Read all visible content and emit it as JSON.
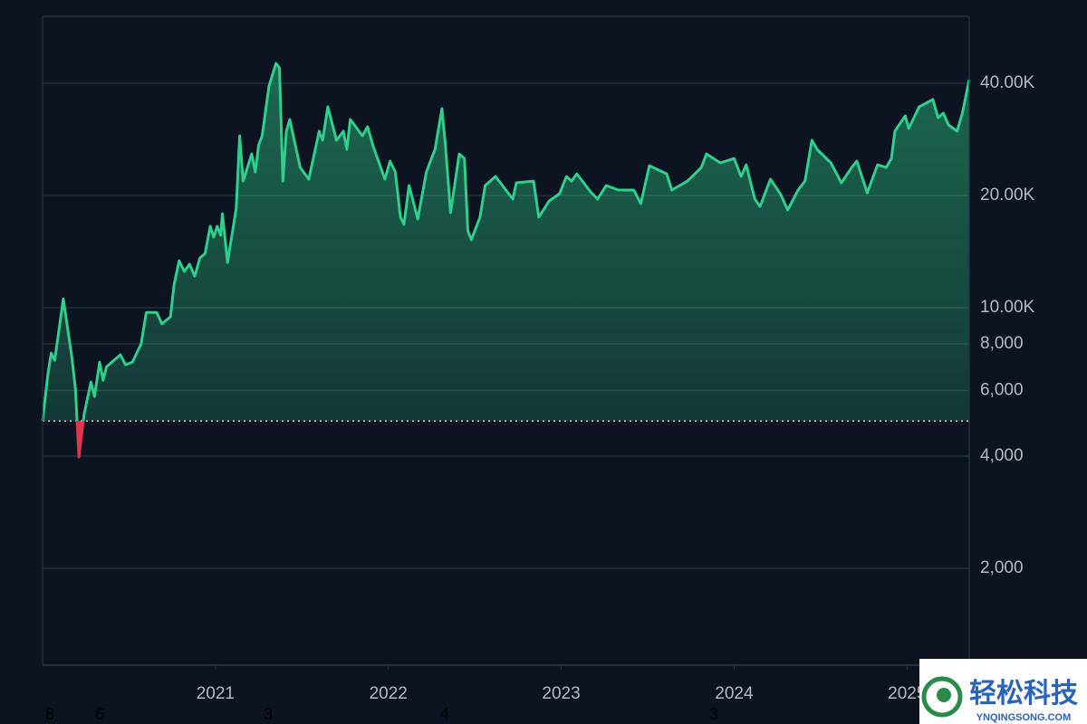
{
  "chart_data": {
    "type": "area",
    "log_scale": true,
    "grid": true,
    "color": "#2fcf8c",
    "negative_color": "#e0384a",
    "baseline": 4970,
    "xlim": [
      2020,
      2025.36
    ],
    "xticks": [
      2021,
      2022,
      2023,
      2024,
      2025
    ],
    "ylim": [
      1100,
      60500
    ],
    "yticks": [
      {
        "value": 2000,
        "label": "2,000"
      },
      {
        "value": 4000,
        "label": "4,000"
      },
      {
        "value": 6000,
        "label": "6,000"
      },
      {
        "value": 8000,
        "label": "8,000"
      },
      {
        "value": 10000,
        "label": "10.00K"
      },
      {
        "value": 20000,
        "label": "20.00K"
      },
      {
        "value": 40000,
        "label": "40.00K"
      }
    ],
    "x": [
      2020.0,
      2020.03,
      2020.05,
      2020.07,
      2020.12,
      2020.17,
      2020.19,
      2020.21,
      2020.24,
      2020.28,
      2020.3,
      2020.33,
      2020.35,
      2020.37,
      2020.45,
      2020.48,
      2020.52,
      2020.57,
      2020.6,
      2020.66,
      2020.69,
      2020.74,
      2020.76,
      2020.79,
      2020.82,
      2020.85,
      2020.88,
      2020.91,
      2020.94,
      2020.97,
      2020.99,
      2021.01,
      2021.03,
      2021.04,
      2021.07,
      2021.12,
      2021.14,
      2021.16,
      2021.21,
      2021.23,
      2021.25,
      2021.27,
      2021.31,
      2021.35,
      2021.37,
      2021.39,
      2021.41,
      2021.43,
      2021.49,
      2021.54,
      2021.6,
      2021.62,
      2021.65,
      2021.7,
      2021.74,
      2021.76,
      2021.78,
      2021.85,
      2021.88,
      2021.91,
      2021.98,
      2022.01,
      2022.04,
      2022.07,
      2022.09,
      2022.12,
      2022.17,
      2022.22,
      2022.27,
      2022.31,
      2022.33,
      2022.36,
      2022.41,
      2022.44,
      2022.46,
      2022.48,
      2022.53,
      2022.56,
      2022.62,
      2022.66,
      2022.72,
      2022.74,
      2022.84,
      2022.87,
      2022.93,
      2022.99,
      2023.03,
      2023.06,
      2023.09,
      2023.17,
      2023.21,
      2023.26,
      2023.33,
      2023.42,
      2023.46,
      2023.51,
      2023.61,
      2023.64,
      2023.73,
      2023.81,
      2023.84,
      2023.92,
      2024.0,
      2024.04,
      2024.07,
      2024.12,
      2024.15,
      2024.21,
      2024.27,
      2024.31,
      2024.37,
      2024.41,
      2024.45,
      2024.48,
      2024.56,
      2024.62,
      2024.68,
      2024.71,
      2024.77,
      2024.83,
      2024.88,
      2024.91,
      2024.93,
      2024.99,
      2025.01,
      2025.07,
      2025.15,
      2025.18,
      2025.21,
      2025.24,
      2025.29,
      2025.32,
      2025.36
    ],
    "values": [
      4970,
      6580,
      7560,
      7230,
      10570,
      7350,
      6050,
      3980,
      5170,
      6320,
      5780,
      7150,
      6390,
      6950,
      7480,
      7030,
      7150,
      8000,
      9720,
      9720,
      9050,
      9460,
      11500,
      13370,
      12510,
      13080,
      12160,
      13600,
      13980,
      16540,
      15470,
      16540,
      15640,
      17880,
      13230,
      18490,
      28920,
      21870,
      25860,
      23130,
      27350,
      28920,
      39340,
      45230,
      43990,
      21870,
      29750,
      31990,
      23780,
      22120,
      29750,
      28130,
      34590,
      28130,
      29750,
      26600,
      31990,
      28920,
      30590,
      27350,
      22120,
      24740,
      23130,
      17490,
      16730,
      21270,
      17300,
      23130,
      26600,
      34210,
      27350,
      17990,
      25860,
      25150,
      16080,
      15210,
      17490,
      21270,
      22500,
      21270,
      19560,
      21630,
      21870,
      17490,
      19340,
      20230,
      22500,
      21870,
      22870,
      20460,
      19560,
      21270,
      20690,
      20690,
      19020,
      24050,
      22870,
      20690,
      21870,
      23780,
      25860,
      24460,
      25150,
      22500,
      24180,
      19560,
      18700,
      22120,
      20110,
      18290,
      20690,
      21870,
      28130,
      26600,
      24460,
      21630,
      23780,
      24740,
      20340,
      24180,
      23780,
      25150,
      29750,
      32710,
      30250,
      34590,
      36170,
      32350,
      33270,
      30930,
      29750,
      33270,
      40910
    ],
    "footer_labels": [
      "8",
      "6",
      "3",
      "4",
      "3"
    ],
    "watermark": {
      "title": "轻松科技",
      "subtitle": "YNQINGSONG.COM"
    }
  }
}
